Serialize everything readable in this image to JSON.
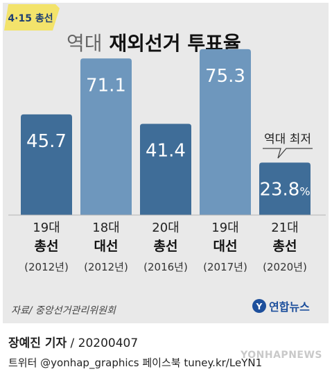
{
  "badge": "4·15 총선",
  "title": {
    "light": "역대",
    "bold": "재외선거 투표율"
  },
  "chart_data": {
    "type": "bar",
    "title": "역대 재외선거 투표율",
    "categories": [
      {
        "num": "19대",
        "kind": "총선",
        "year": "(2012년)"
      },
      {
        "num": "18대",
        "kind": "대선",
        "year": "(2012년)"
      },
      {
        "num": "20대",
        "kind": "총선",
        "year": "(2016년)"
      },
      {
        "num": "19대",
        "kind": "대선",
        "year": "(2017년)"
      },
      {
        "num": "21대",
        "kind": "총선",
        "year": "(2020년)"
      }
    ],
    "values": [
      45.7,
      71.1,
      41.4,
      75.3,
      23.8
    ],
    "value_labels": [
      "45.7",
      "71.1",
      "41.4",
      "75.3",
      "23.8"
    ],
    "unit": "%",
    "ylim": [
      0,
      80
    ],
    "bar_colors": [
      "#3f6d98",
      "#6e97bd",
      "#3f6d98",
      "#6e97bd",
      "#3f6d98"
    ],
    "annotation": {
      "text": "역대 최저",
      "target_index": 4
    },
    "grid": false
  },
  "source": "자료/ 중앙선거관리위원회",
  "brand": {
    "icon": "yonhap-logo-icon",
    "name": "연합뉴스"
  },
  "footer": {
    "byline": "장예진 기자",
    "date": " / 20200407",
    "social": "트위터 @yonhap_graphics  페이스북 tuney.kr/LeYN1",
    "watermark": "YONHAPNEWS"
  },
  "colors": {
    "panel": "#e9e9e9",
    "dark_bar": "#3f6d98",
    "light_bar": "#6e97bd",
    "badge": "#f3e36b",
    "badge_text": "#1f3f73"
  }
}
